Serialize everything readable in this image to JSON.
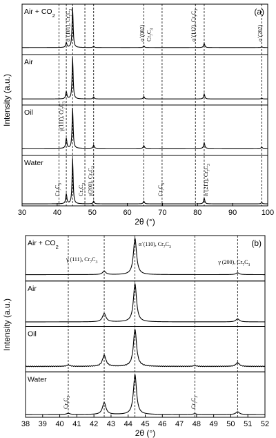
{
  "chart_data": [
    {
      "type": "line",
      "panel_label": "(a)",
      "xlabel": "2θ (°)",
      "ylabel": "Intensity (a.u.)",
      "xlim": [
        30,
        100
      ],
      "xticks": [
        30,
        40,
        50,
        60,
        70,
        80,
        90,
        100
      ],
      "stacked_series": [
        "Air + CO2",
        "Air",
        "Oil",
        "Water"
      ],
      "series": [
        {
          "name": "Air + CO2",
          "peaks": [
            [
              42.6,
              0.12
            ],
            [
              44.4,
              1.0
            ],
            [
              50.4,
              0.03
            ],
            [
              64.7,
              0.04
            ],
            [
              81.9,
              0.1
            ],
            [
              98.3,
              0.02
            ]
          ]
        },
        {
          "name": "Air",
          "peaks": [
            [
              42.6,
              0.18
            ],
            [
              44.4,
              1.0
            ],
            [
              50.4,
              0.05
            ],
            [
              64.7,
              0.06
            ],
            [
              81.9,
              0.12
            ],
            [
              98.3,
              0.02
            ]
          ]
        },
        {
          "name": "Oil",
          "peaks": [
            [
              42.6,
              0.25
            ],
            [
              44.4,
              1.0
            ],
            [
              50.4,
              0.08
            ],
            [
              64.7,
              0.07
            ],
            [
              81.9,
              0.14
            ],
            [
              98.3,
              0.03
            ]
          ]
        },
        {
          "name": "Water",
          "peaks": [
            [
              42.6,
              0.22
            ],
            [
              44.4,
              1.0
            ],
            [
              50.4,
              0.06
            ],
            [
              64.7,
              0.06
            ],
            [
              81.9,
              0.13
            ],
            [
              98.3,
              0.03
            ]
          ]
        }
      ],
      "dashed_lines": [
        40.5,
        42.6,
        44.4,
        47.9,
        50.4,
        64.7,
        69.9,
        79.4,
        81.9,
        98.3
      ],
      "annotations": [
        {
          "text": "α΄(101), Cr7C3",
          "x": 44.0,
          "panel": "Air + CO2"
        },
        {
          "text": "α΄(002)",
          "x": 64.7,
          "panel": "Air + CO2"
        },
        {
          "text": "Cr7C3",
          "x": 66.3,
          "panel": "Air + CO2"
        },
        {
          "text": "α΄(112), Cr7C3",
          "x": 79.4,
          "panel": "Air + CO2"
        },
        {
          "text": "α΄(202)",
          "x": 98.3,
          "panel": "Air + CO2"
        },
        {
          "text": "γ(111), Cr7C3",
          "x": 42.3,
          "panel": "Oil"
        },
        {
          "text": "Cr7C3",
          "x": 40.5,
          "panel": "Water"
        },
        {
          "text": "Cr7C3",
          "x": 47.9,
          "panel": "Water"
        },
        {
          "text": "γ(200), Cr7C3",
          "x": 50.4,
          "panel": "Water"
        },
        {
          "text": "Cr7C3",
          "x": 69.9,
          "panel": "Water"
        },
        {
          "text": "α΄(211), Cr7C3",
          "x": 81.9,
          "panel": "Water"
        }
      ]
    },
    {
      "type": "line",
      "panel_label": "(b)",
      "xlabel": "2θ (°)",
      "ylabel": "Intensity (a.u.)",
      "xlim": [
        38,
        52
      ],
      "xticks": [
        38,
        39,
        40,
        41,
        42,
        43,
        44,
        45,
        46,
        47,
        48,
        49,
        50,
        51,
        52
      ],
      "stacked_series": [
        "Air + CO2",
        "Air",
        "Oil",
        "Water"
      ],
      "series": [
        {
          "name": "Air + CO2",
          "peaks": [
            [
              42.6,
              0.09
            ],
            [
              44.4,
              1.0
            ],
            [
              50.4,
              0.05
            ]
          ]
        },
        {
          "name": "Air",
          "peaks": [
            [
              42.6,
              0.22
            ],
            [
              44.4,
              1.0
            ],
            [
              50.4,
              0.08
            ]
          ]
        },
        {
          "name": "Oil",
          "peaks": [
            [
              40.5,
              0.04
            ],
            [
              42.6,
              0.3
            ],
            [
              44.4,
              1.0
            ],
            [
              47.9,
              0.02
            ],
            [
              50.4,
              0.1
            ]
          ]
        },
        {
          "name": "Water",
          "peaks": [
            [
              40.5,
              0.03
            ],
            [
              42.6,
              0.3
            ],
            [
              44.4,
              1.0
            ],
            [
              47.9,
              0.02
            ],
            [
              50.4,
              0.07
            ]
          ]
        }
      ],
      "dashed_lines": [
        40.5,
        42.6,
        44.4,
        47.9,
        50.4
      ],
      "annotations": [
        {
          "text": "γ (111), Cr7C3",
          "x": 42.6,
          "panel": "Air + CO2"
        },
        {
          "text": "α΄(110), Cr7C3",
          "x": 45.5,
          "panel": "Air + CO2"
        },
        {
          "text": "γ (200), Cr7C3",
          "x": 50.4,
          "panel": "Air + CO2"
        },
        {
          "text": "Cr7C3",
          "x": 40.3,
          "panel": "Water"
        },
        {
          "text": "Cr7C3",
          "x": 47.6,
          "panel": "Water"
        }
      ]
    }
  ]
}
